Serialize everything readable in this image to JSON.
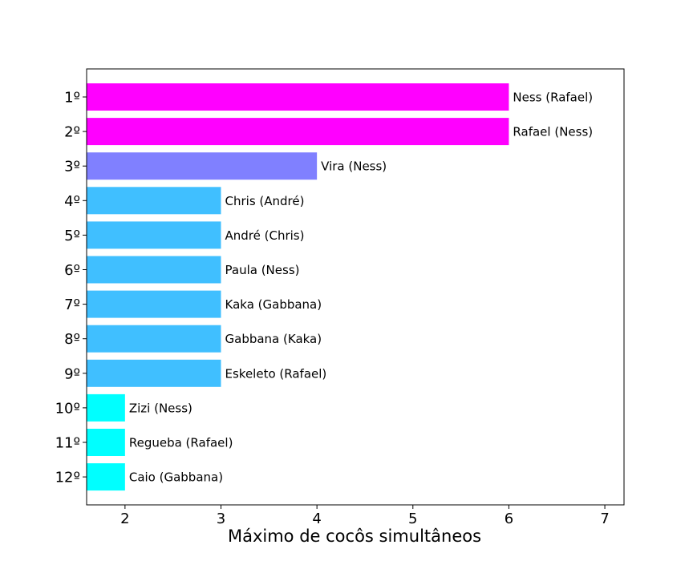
{
  "chart_data": {
    "type": "bar",
    "orientation": "horizontal",
    "xlabel": "Máximo de cocôs simultâneos",
    "xlim": [
      1.6,
      7.2
    ],
    "xticks": [
      "2",
      "3",
      "4",
      "5",
      "6",
      "7"
    ],
    "xtick_values": [
      2,
      3,
      4,
      5,
      6,
      7
    ],
    "grid": false,
    "bars": [
      {
        "rank": "1º",
        "label": "Ness (Rafael)",
        "value": 6,
        "color": "#ff00ff"
      },
      {
        "rank": "2º",
        "label": "Rafael (Ness)",
        "value": 6,
        "color": "#ff00ff"
      },
      {
        "rank": "3º",
        "label": "Vira (Ness)",
        "value": 4,
        "color": "#8080ff"
      },
      {
        "rank": "4º",
        "label": "Chris (André)",
        "value": 3,
        "color": "#40bfff"
      },
      {
        "rank": "5º",
        "label": "André (Chris)",
        "value": 3,
        "color": "#40bfff"
      },
      {
        "rank": "6º",
        "label": "Paula (Ness)",
        "value": 3,
        "color": "#40bfff"
      },
      {
        "rank": "7º",
        "label": "Kaka (Gabbana)",
        "value": 3,
        "color": "#40bfff"
      },
      {
        "rank": "8º",
        "label": "Gabbana (Kaka)",
        "value": 3,
        "color": "#40bfff"
      },
      {
        "rank": "9º",
        "label": "Eskeleto (Rafael)",
        "value": 3,
        "color": "#40bfff"
      },
      {
        "rank": "10º",
        "label": "Zizi (Ness)",
        "value": 2,
        "color": "#00ffff"
      },
      {
        "rank": "11º",
        "label": "Regueba (Rafael)",
        "value": 2,
        "color": "#00ffff"
      },
      {
        "rank": "12º",
        "label": "Caio (Gabbana)",
        "value": 2,
        "color": "#00ffff"
      }
    ]
  }
}
